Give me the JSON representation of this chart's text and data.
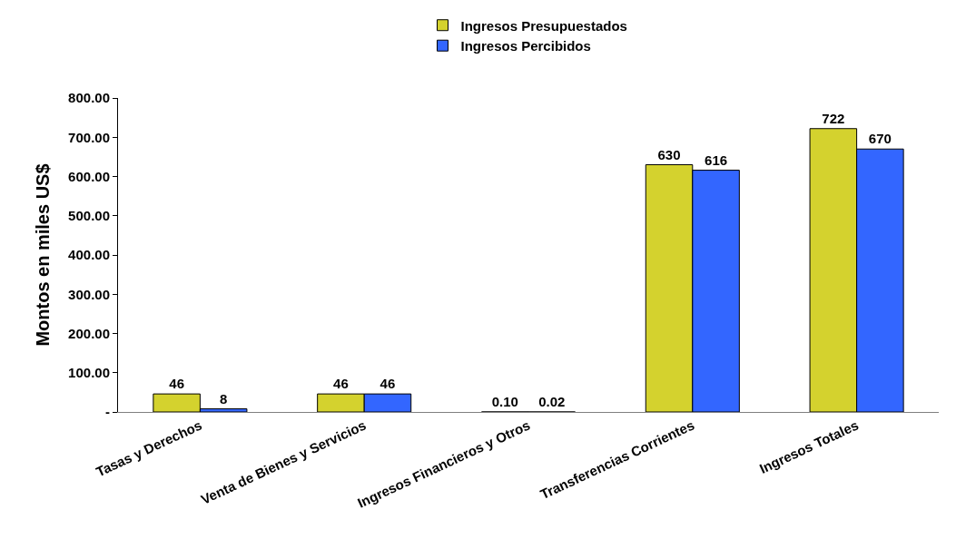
{
  "chart_data": {
    "type": "bar",
    "ylabel": "Montos en miles US$",
    "categories": [
      "Tasas y Derechos",
      "Venta de Bienes y Servicios",
      "Ingresos Financieros y Otros",
      "Transferencias Corrientes",
      "Ingresos Totales"
    ],
    "series": [
      {
        "name": "Ingresos Presupuestados",
        "color": "#d4d22e",
        "values": [
          46,
          46,
          0.1,
          630,
          722
        ],
        "value_labels": [
          "46",
          "46",
          "0.10",
          "630",
          "722"
        ]
      },
      {
        "name": "Ingresos Percibidos",
        "color": "#3366ff",
        "values": [
          8,
          46,
          0.02,
          616,
          670
        ],
        "value_labels": [
          "8",
          "46",
          "0.02",
          "616",
          "670"
        ]
      }
    ],
    "ylim": [
      0,
      800
    ],
    "yticks": [
      {
        "value": 0,
        "label": "-"
      },
      {
        "value": 100,
        "label": "100.00"
      },
      {
        "value": 200,
        "label": "200.00"
      },
      {
        "value": 300,
        "label": "300.00"
      },
      {
        "value": 400,
        "label": "400.00"
      },
      {
        "value": 500,
        "label": "500.00"
      },
      {
        "value": 600,
        "label": "600.00"
      },
      {
        "value": 700,
        "label": "700.00"
      },
      {
        "value": 800,
        "label": "800.00"
      }
    ],
    "legend": "top"
  }
}
